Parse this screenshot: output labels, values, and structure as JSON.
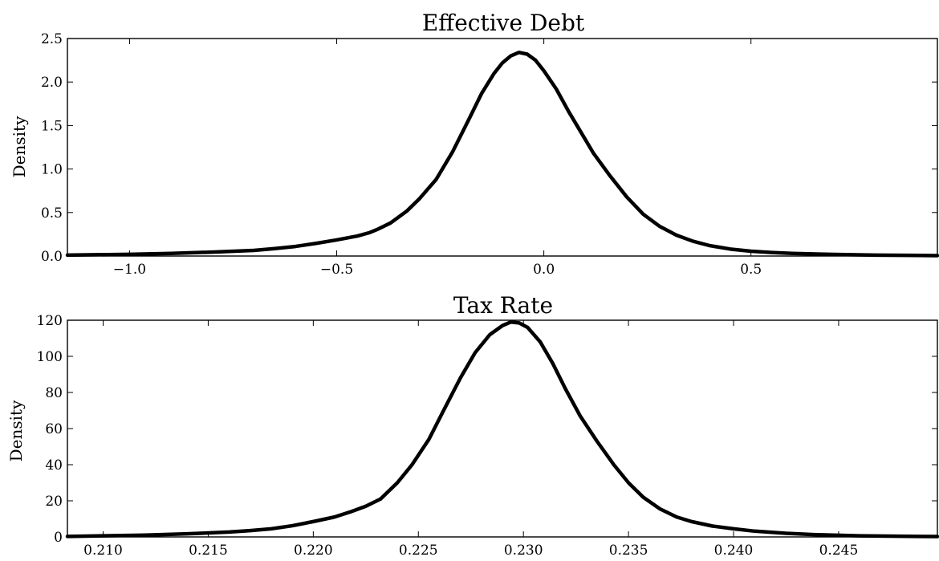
{
  "chart_data": [
    {
      "type": "line",
      "title": "Effective Debt",
      "xlabel": "",
      "ylabel": "Density",
      "xlim": [
        -1.15,
        0.95
      ],
      "ylim": [
        0,
        2.5
      ],
      "xticks": [
        -1.0,
        -0.5,
        0.0,
        0.5
      ],
      "xtick_labels": [
        "−1.0",
        "−0.5",
        "0.0",
        "0.5"
      ],
      "yticks": [
        0,
        0.5,
        1.0,
        1.5,
        2.0,
        2.5
      ],
      "ytick_labels": [
        "0.0",
        "0.5",
        "1.0",
        "1.5",
        "2.0",
        "2.5"
      ],
      "grid": false,
      "series": [
        {
          "color": "#000000",
          "x": [
            -1.15,
            -1.0,
            -0.9,
            -0.8,
            -0.7,
            -0.65,
            -0.6,
            -0.55,
            -0.5,
            -0.45,
            -0.42,
            -0.4,
            -0.37,
            -0.33,
            -0.3,
            -0.26,
            -0.22,
            -0.18,
            -0.15,
            -0.12,
            -0.1,
            -0.08,
            -0.06,
            -0.04,
            -0.02,
            0.0,
            0.03,
            0.06,
            0.09,
            0.12,
            0.16,
            0.2,
            0.24,
            0.28,
            0.32,
            0.36,
            0.4,
            0.45,
            0.5,
            0.55,
            0.6,
            0.7,
            0.8,
            0.95
          ],
          "y": [
            0.01,
            0.02,
            0.03,
            0.045,
            0.065,
            0.085,
            0.11,
            0.145,
            0.185,
            0.23,
            0.27,
            0.31,
            0.38,
            0.52,
            0.66,
            0.88,
            1.2,
            1.58,
            1.87,
            2.1,
            2.22,
            2.3,
            2.34,
            2.32,
            2.25,
            2.13,
            1.92,
            1.66,
            1.42,
            1.18,
            0.92,
            0.68,
            0.48,
            0.34,
            0.24,
            0.17,
            0.12,
            0.08,
            0.055,
            0.04,
            0.03,
            0.018,
            0.01,
            0.005
          ]
        }
      ]
    },
    {
      "type": "line",
      "title": "Tax Rate",
      "xlabel": "",
      "ylabel": "Density",
      "xlim": [
        0.2083,
        0.2497
      ],
      "ylim": [
        0,
        120
      ],
      "xticks": [
        0.21,
        0.215,
        0.22,
        0.225,
        0.23,
        0.235,
        0.24,
        0.245
      ],
      "xtick_labels": [
        "0.210",
        "0.215",
        "0.220",
        "0.225",
        "0.230",
        "0.235",
        "0.240",
        "0.245"
      ],
      "yticks": [
        0,
        20,
        40,
        60,
        80,
        100,
        120
      ],
      "ytick_labels": [
        "0",
        "20",
        "40",
        "60",
        "80",
        "100",
        "120"
      ],
      "grid": false,
      "series": [
        {
          "color": "#000000",
          "x": [
            0.2083,
            0.21,
            0.212,
            0.214,
            0.216,
            0.217,
            0.218,
            0.219,
            0.22,
            0.221,
            0.2218,
            0.2225,
            0.2232,
            0.224,
            0.2247,
            0.2255,
            0.2262,
            0.227,
            0.2277,
            0.2284,
            0.229,
            0.2294,
            0.2298,
            0.2302,
            0.2308,
            0.2314,
            0.232,
            0.2327,
            0.2335,
            0.2343,
            0.235,
            0.2357,
            0.2365,
            0.2373,
            0.238,
            0.239,
            0.24,
            0.241,
            0.2425,
            0.244,
            0.246,
            0.2497
          ],
          "y": [
            0.3,
            0.6,
            1.0,
            1.7,
            2.7,
            3.5,
            4.5,
            6.2,
            8.5,
            11.0,
            14.0,
            17.0,
            21.0,
            30.0,
            40.0,
            54.0,
            70.0,
            88.0,
            102.0,
            112.0,
            117.0,
            119.0,
            118.5,
            116.0,
            108.0,
            96.0,
            82.0,
            67.0,
            53.0,
            40.0,
            30.0,
            22.0,
            15.5,
            11.0,
            8.5,
            6.0,
            4.5,
            3.2,
            2.0,
            1.2,
            0.6,
            0.2
          ]
        }
      ]
    }
  ]
}
